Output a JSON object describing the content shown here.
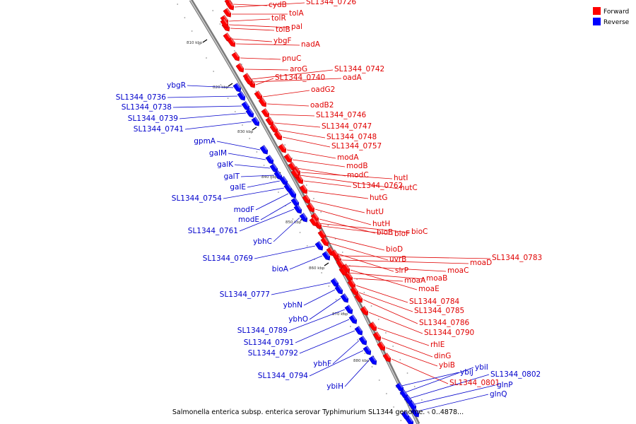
{
  "legend": {
    "forward_label": "Forward",
    "reverse_label": "Reverse",
    "forward_color": "#ff0000",
    "reverse_color": "#0000ff"
  },
  "caption": "Salmonella enterica subsp. enterica serovar Typhimurium SL1344 genome. - 0..4878...",
  "ticks": [
    "810 kbp",
    "820 kbp",
    "830 kbp",
    "840 kbp",
    "850 kbp",
    "860 kbp",
    "870 kbp",
    "880 kbp"
  ],
  "forward_genes": [
    "cydB",
    "SL1344_0726",
    "tolA",
    "tolR",
    "tolB",
    "pal",
    "ybgF",
    "nadA",
    "pnuC",
    "aroG",
    "SL1344_0742",
    "SL1344_0740",
    "oadA",
    "oadG2",
    "oadB2",
    "SL1344_0746",
    "SL1344_0747",
    "SL1344_0748",
    "SL1344_0757",
    "modA",
    "modB",
    "modC",
    "hutI",
    "SL1344_0762",
    "hutC",
    "hutG",
    "hutU",
    "hutH",
    "bioB",
    "bioF",
    "bioC",
    "bioD",
    "uvrB",
    "slrP",
    "moaD",
    "SL1344_0783",
    "moaC",
    "moaB",
    "moaA",
    "moaE",
    "SL1344_0784",
    "SL1344_0785",
    "SL1344_0786",
    "SL1344_0790",
    "rhlE",
    "dinG",
    "ybiB",
    "SL1344_0801"
  ],
  "reverse_genes": [
    "ybgR",
    "SL1344_0736",
    "SL1344_0738",
    "SL1344_0739",
    "SL1344_0741",
    "gpmA",
    "galM",
    "galK",
    "galT",
    "galE",
    "SL1344_0754",
    "modF",
    "modE",
    "SL1344_0761",
    "ybhC",
    "SL1344_0769",
    "bioA",
    "SL1344_0777",
    "ybhN",
    "ybhO",
    "SL1344_0789",
    "SL1344_0791",
    "SL1344_0792",
    "ybhF",
    "SL1344_0794",
    "ybiH",
    "ybiJ",
    "ybiI",
    "SL1344_0802",
    "glnP",
    "glnQ"
  ]
}
